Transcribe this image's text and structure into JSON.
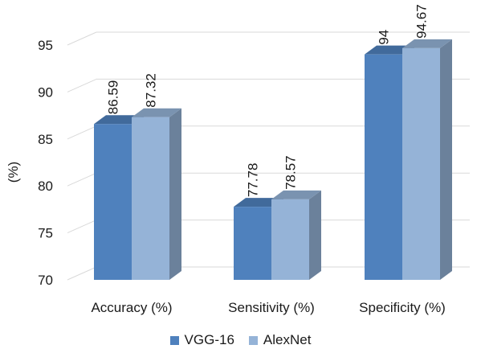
{
  "chart_data": {
    "type": "bar",
    "categories": [
      "Accuracy (%)",
      "Sensitivity (%)",
      "Specificity (%)"
    ],
    "series": [
      {
        "name": "VGG-16",
        "values": [
          86.59,
          77.78,
          94
        ],
        "labels": [
          "86.59",
          "77.78",
          "94"
        ],
        "color": "#4f81bd"
      },
      {
        "name": "AlexNet",
        "values": [
          87.32,
          78.57,
          94.67
        ],
        "labels": [
          "87.32",
          "78.57",
          "94.67"
        ],
        "color": "#95b3d7"
      }
    ],
    "ylabel": "(%)",
    "ylim": [
      70,
      95
    ],
    "yticks": [
      70,
      75,
      80,
      85,
      90,
      95
    ],
    "ytick_labels": [
      "70",
      "75",
      "80",
      "85",
      "90",
      "95"
    ],
    "grid": true,
    "three_d": true,
    "legend_position": "bottom"
  }
}
